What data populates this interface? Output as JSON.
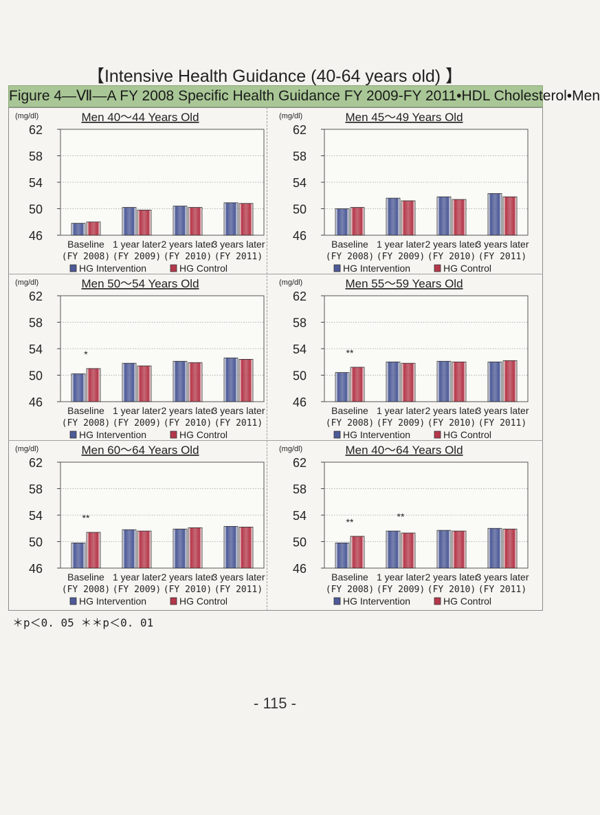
{
  "title": "【Intensive Health Guidance (40-64 years old) 】",
  "subtitle": "Figure 4—Ⅶ—A  FY 2008 Specific Health Guidance FY 2009-FY 2011•HDL Cholesterol•Men",
  "footnote": "＊p＜0. 05  ＊＊p＜0. 01",
  "page_number": "- 115 -",
  "colors": {
    "intervention": "#4d5a97",
    "control": "#b4384a"
  },
  "chart_data": [
    {
      "type": "bar",
      "title": "Men 40～44 Years Old",
      "unit": "(mg/dl)",
      "categories": [
        "Baseline",
        "1 year later",
        "2 years later",
        "3 years later"
      ],
      "years": [
        "(FY 2008)",
        "(FY 2009)",
        "(FY 2010)",
        "(FY 2011)"
      ],
      "ylim": [
        46,
        62
      ],
      "yticks": [
        "62",
        "58",
        "54",
        "50",
        "46"
      ],
      "series": [
        {
          "name": "HG Intervention",
          "values": [
            47.8,
            50.2,
            50.4,
            50.9
          ]
        },
        {
          "name": "HG Control",
          "values": [
            48.0,
            49.8,
            50.2,
            50.8
          ]
        }
      ],
      "annotations": [
        "",
        "",
        "",
        ""
      ]
    },
    {
      "type": "bar",
      "title": "Men 45～49 Years Old",
      "unit": "(mg/dl)",
      "categories": [
        "Baseline",
        "1 year later",
        "2 years later",
        "3 years later"
      ],
      "years": [
        "(FY 2008)",
        "(FY 2009)",
        "(FY 2010)",
        "(FY 2011)"
      ],
      "ylim": [
        46,
        62
      ],
      "yticks": [
        "62",
        "58",
        "54",
        "50",
        "46"
      ],
      "series": [
        {
          "name": "HG Intervention",
          "values": [
            50.0,
            51.6,
            51.8,
            52.3
          ]
        },
        {
          "name": "HG Control",
          "values": [
            50.2,
            51.2,
            51.4,
            51.8
          ]
        }
      ],
      "annotations": [
        "",
        "",
        "",
        ""
      ]
    },
    {
      "type": "bar",
      "title": "Men 50～54 Years Old",
      "unit": "(mg/dl)",
      "categories": [
        "Baseline",
        "1 year later",
        "2 years later",
        "3 years later"
      ],
      "years": [
        "(FY 2008)",
        "(FY 2009)",
        "(FY 2010)",
        "(FY 2011)"
      ],
      "ylim": [
        46,
        62
      ],
      "yticks": [
        "62",
        "58",
        "54",
        "50",
        "46"
      ],
      "series": [
        {
          "name": "HG Intervention",
          "values": [
            50.2,
            51.8,
            52.1,
            52.6
          ]
        },
        {
          "name": "HG Control",
          "values": [
            51.0,
            51.4,
            51.9,
            52.4
          ]
        }
      ],
      "annotations": [
        "*",
        "",
        "",
        ""
      ]
    },
    {
      "type": "bar",
      "title": "Men 55～59 Years Old",
      "unit": "(mg/dl)",
      "categories": [
        "Baseline",
        "1 year later",
        "2 years later",
        "3 years later"
      ],
      "years": [
        "(FY 2008)",
        "(FY 2009)",
        "(FY 2010)",
        "(FY 2011)"
      ],
      "ylim": [
        46,
        62
      ],
      "yticks": [
        "62",
        "58",
        "54",
        "50",
        "46"
      ],
      "series": [
        {
          "name": "HG Intervention",
          "values": [
            50.4,
            52.0,
            52.1,
            52.0
          ]
        },
        {
          "name": "HG Control",
          "values": [
            51.2,
            51.8,
            52.0,
            52.2
          ]
        }
      ],
      "annotations": [
        "**",
        "",
        "",
        ""
      ]
    },
    {
      "type": "bar",
      "title": "Men 60～64 Years Old",
      "unit": "(mg/dl)",
      "categories": [
        "Baseline",
        "1 year later",
        "2 years later",
        "3 years later"
      ],
      "years": [
        "(FY 2008)",
        "(FY 2009)",
        "(FY 2010)",
        "(FY 2011)"
      ],
      "ylim": [
        46,
        62
      ],
      "yticks": [
        "62",
        "58",
        "54",
        "50",
        "46"
      ],
      "series": [
        {
          "name": "HG Intervention",
          "values": [
            49.8,
            51.8,
            51.9,
            52.3
          ]
        },
        {
          "name": "HG Control",
          "values": [
            51.4,
            51.6,
            52.1,
            52.2
          ]
        }
      ],
      "annotations": [
        "**",
        "",
        "",
        ""
      ]
    },
    {
      "type": "bar",
      "title": "Men 40～64 Years Old",
      "unit": "(mg/dl)",
      "categories": [
        "Baseline",
        "1 year later",
        "2 years later",
        "3 years later"
      ],
      "years": [
        "(FY 2008)",
        "(FY 2009)",
        "(FY 2010)",
        "(FY 2011)"
      ],
      "ylim": [
        46,
        62
      ],
      "yticks": [
        "62",
        "58",
        "54",
        "50",
        "46"
      ],
      "series": [
        {
          "name": "HG Intervention",
          "values": [
            49.8,
            51.6,
            51.7,
            52.0
          ]
        },
        {
          "name": "HG Control",
          "values": [
            50.8,
            51.3,
            51.6,
            51.9
          ]
        }
      ],
      "annotations": [
        "**",
        "**",
        "",
        ""
      ]
    }
  ]
}
